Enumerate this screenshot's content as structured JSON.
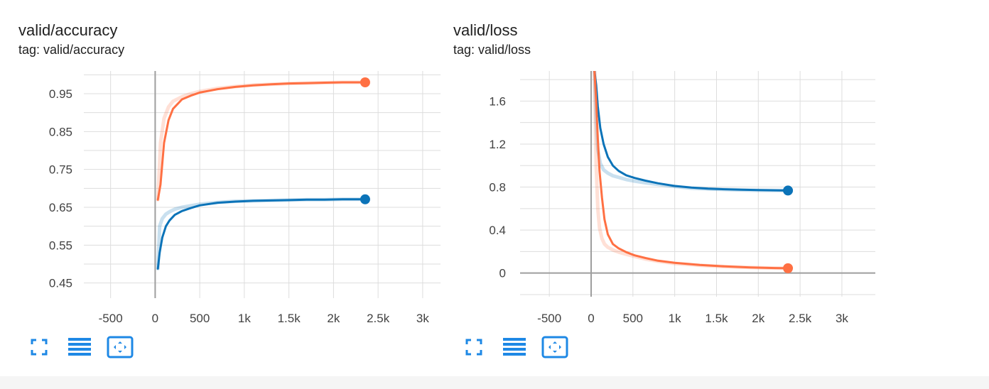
{
  "cards": [
    {
      "title": "valid/accuracy",
      "tag": "tag: valid/accuracy",
      "actions": [
        {
          "icon": "fullscreen-icon"
        },
        {
          "icon": "data-table-icon"
        },
        {
          "icon": "fit-domain-icon"
        }
      ]
    },
    {
      "title": "valid/loss",
      "tag": "tag: valid/loss",
      "actions": [
        {
          "icon": "fullscreen-icon"
        },
        {
          "icon": "data-table-icon"
        },
        {
          "icon": "fit-domain-icon"
        }
      ]
    }
  ],
  "colors": {
    "orange": "#ff7043",
    "blue": "#0b73b8",
    "grid": "#dddddd",
    "axis": "#9e9e9e",
    "icon": "#1e88e5"
  },
  "chart_data": [
    {
      "type": "line",
      "title": "valid/accuracy",
      "xlabel": "",
      "ylabel": "",
      "xlim": [
        -800,
        3200
      ],
      "ylim": [
        0.41,
        1.01
      ],
      "x_ticks": [
        -500,
        0,
        500,
        1000,
        1500,
        2000,
        2500,
        3000
      ],
      "x_tick_labels": [
        "-500",
        "0",
        "500",
        "1k",
        "1.5k",
        "2k",
        "2.5k",
        "3k"
      ],
      "y_ticks": [
        0.45,
        0.55,
        0.65,
        0.75,
        0.85,
        0.95
      ],
      "y_tick_labels": [
        "0.45",
        "0.55",
        "0.65",
        "0.75",
        "0.85",
        "0.95"
      ],
      "grid": true,
      "series": [
        {
          "color": "#ff7043",
          "x": [
            30,
            60,
            100,
            150,
            200,
            300,
            400,
            500,
            700,
            900,
            1100,
            1300,
            1500,
            1700,
            1900,
            2100,
            2355
          ],
          "y": [
            0.67,
            0.71,
            0.82,
            0.88,
            0.91,
            0.935,
            0.945,
            0.953,
            0.962,
            0.968,
            0.972,
            0.975,
            0.977,
            0.978,
            0.979,
            0.98,
            0.98
          ],
          "raw_y": [
            0.67,
            0.82,
            0.885,
            0.915,
            0.93,
            0.942,
            0.95,
            0.956,
            0.964,
            0.969,
            0.973,
            0.975,
            0.977,
            0.978,
            0.979,
            0.98,
            0.98
          ],
          "end_marker": true
        },
        {
          "color": "#0b73b8",
          "x": [
            30,
            50,
            80,
            120,
            160,
            220,
            300,
            400,
            500,
            700,
            900,
            1100,
            1300,
            1500,
            1700,
            1900,
            2100,
            2355
          ],
          "y": [
            0.488,
            0.53,
            0.57,
            0.6,
            0.615,
            0.63,
            0.64,
            0.648,
            0.655,
            0.662,
            0.665,
            0.667,
            0.668,
            0.669,
            0.67,
            0.67,
            0.671,
            0.671
          ],
          "raw_y": [
            0.488,
            0.6,
            0.62,
            0.632,
            0.638,
            0.645,
            0.65,
            0.654,
            0.658,
            0.663,
            0.666,
            0.667,
            0.668,
            0.669,
            0.67,
            0.67,
            0.671,
            0.671
          ],
          "end_marker": true
        }
      ]
    },
    {
      "type": "line",
      "title": "valid/loss",
      "xlabel": "",
      "ylabel": "",
      "xlim": [
        -850,
        3400
      ],
      "ylim": [
        -0.22,
        1.88
      ],
      "x_ticks": [
        -500,
        0,
        500,
        1000,
        1500,
        2000,
        2500,
        3000
      ],
      "x_tick_labels": [
        "-500",
        "0",
        "500",
        "1k",
        "1.5k",
        "2k",
        "2.5k",
        "3k"
      ],
      "y_ticks": [
        0,
        0.4,
        0.8,
        1.2,
        1.6
      ],
      "y_tick_labels": [
        "0",
        "0.4",
        "0.8",
        "1.2",
        "1.6"
      ],
      "grid": true,
      "series": [
        {
          "color": "#0b73b8",
          "x": [
            40,
            60,
            80,
            110,
            150,
            200,
            260,
            330,
            420,
            520,
            650,
            800,
            1000,
            1200,
            1400,
            1600,
            1800,
            2000,
            2200,
            2355
          ],
          "y": [
            1.88,
            1.75,
            1.55,
            1.35,
            1.2,
            1.08,
            1.0,
            0.95,
            0.91,
            0.885,
            0.86,
            0.835,
            0.81,
            0.795,
            0.785,
            0.78,
            0.775,
            0.772,
            0.77,
            0.768
          ],
          "raw_y": [
            1.88,
            1.4,
            1.15,
            1.02,
            0.96,
            0.93,
            0.905,
            0.89,
            0.87,
            0.855,
            0.84,
            0.825,
            0.805,
            0.79,
            0.782,
            0.777,
            0.773,
            0.77,
            0.769,
            0.768
          ],
          "end_marker": true
        },
        {
          "color": "#ff7043",
          "x": [
            40,
            60,
            80,
            100,
            130,
            160,
            200,
            260,
            330,
            420,
            520,
            650,
            800,
            1000,
            1300,
            1600,
            1900,
            2200,
            2355
          ],
          "y": [
            1.88,
            1.6,
            1.25,
            0.95,
            0.7,
            0.5,
            0.36,
            0.27,
            0.23,
            0.195,
            0.165,
            0.14,
            0.115,
            0.095,
            0.075,
            0.062,
            0.053,
            0.047,
            0.045
          ],
          "raw_y": [
            1.88,
            1.0,
            0.6,
            0.42,
            0.32,
            0.27,
            0.24,
            0.215,
            0.195,
            0.175,
            0.155,
            0.13,
            0.11,
            0.09,
            0.072,
            0.06,
            0.052,
            0.046,
            0.045
          ],
          "end_marker": true
        }
      ]
    }
  ]
}
